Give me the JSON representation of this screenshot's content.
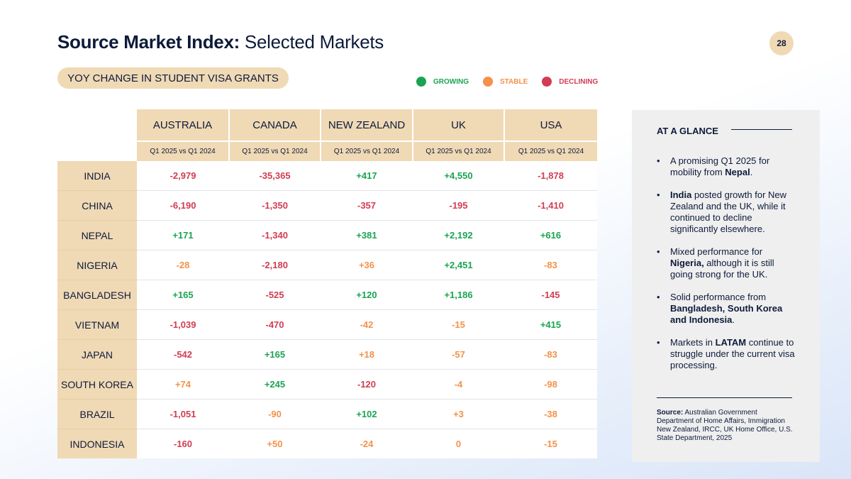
{
  "title": {
    "bold": "Source Market Index:",
    "rest": " Selected Markets"
  },
  "page_number": "28",
  "subtitle_pill": "YOY CHANGE IN STUDENT VISA GRANTS",
  "legend": [
    {
      "label": "GROWING",
      "color": "#1aa452"
    },
    {
      "label": "STABLE",
      "color": "#f5914a"
    },
    {
      "label": "DECLINING",
      "color": "#d23c52"
    }
  ],
  "table": {
    "columns": [
      "AUSTRALIA",
      "CANADA",
      "NEW ZEALAND",
      "UK",
      "USA"
    ],
    "period": "Q1 2025 vs Q1 2024",
    "rows": [
      {
        "label": "INDIA",
        "values": [
          "-2,979",
          "-35,365",
          "+417",
          "+4,550",
          "-1,878"
        ],
        "status": [
          "declining",
          "declining",
          "growing",
          "growing",
          "declining"
        ]
      },
      {
        "label": "CHINA",
        "values": [
          "-6,190",
          "-1,350",
          "-357",
          "-195",
          "-1,410"
        ],
        "status": [
          "declining",
          "declining",
          "declining",
          "declining",
          "declining"
        ]
      },
      {
        "label": "NEPAL",
        "values": [
          "+171",
          "-1,340",
          "+381",
          "+2,192",
          "+616"
        ],
        "status": [
          "growing",
          "declining",
          "growing",
          "growing",
          "growing"
        ]
      },
      {
        "label": "NIGERIA",
        "values": [
          "-28",
          "-2,180",
          "+36",
          "+2,451",
          "-83"
        ],
        "status": [
          "stable",
          "declining",
          "stable",
          "growing",
          "stable"
        ]
      },
      {
        "label": "BANGLADESH",
        "values": [
          "+165",
          "-525",
          "+120",
          "+1,186",
          "-145"
        ],
        "status": [
          "growing",
          "declining",
          "growing",
          "growing",
          "declining"
        ]
      },
      {
        "label": "VIETNAM",
        "values": [
          "-1,039",
          "-470",
          "-42",
          "-15",
          "+415"
        ],
        "status": [
          "declining",
          "declining",
          "stable",
          "stable",
          "growing"
        ]
      },
      {
        "label": "JAPAN",
        "values": [
          "-542",
          "+165",
          "+18",
          "-57",
          "-83"
        ],
        "status": [
          "declining",
          "growing",
          "stable",
          "stable",
          "stable"
        ]
      },
      {
        "label": "SOUTH KOREA",
        "values": [
          "+74",
          "+245",
          "-120",
          "-4",
          "-98"
        ],
        "status": [
          "stable",
          "growing",
          "declining",
          "stable",
          "stable"
        ]
      },
      {
        "label": "BRAZIL",
        "values": [
          "-1,051",
          "-90",
          "+102",
          "+3",
          "-38"
        ],
        "status": [
          "declining",
          "stable",
          "growing",
          "stable",
          "stable"
        ]
      },
      {
        "label": "INDONESIA",
        "values": [
          "-160",
          "+50",
          "-24",
          "0",
          "-15"
        ],
        "status": [
          "declining",
          "stable",
          "stable",
          "stable",
          "stable"
        ]
      }
    ]
  },
  "glance": {
    "heading": "AT A GLANCE",
    "bullets": [
      [
        {
          "t": "A promising Q1 2025 for mobility from "
        },
        {
          "t": "Nepal",
          "b": true
        },
        {
          "t": "."
        }
      ],
      [
        {
          "t": "India",
          "b": true
        },
        {
          "t": " posted growth for New Zealand and the UK, while it continued to decline significantly elsewhere."
        }
      ],
      [
        {
          "t": "Mixed performance for "
        },
        {
          "t": "Nigeria,",
          "b": true
        },
        {
          "t": " although it is still going strong for the UK."
        }
      ],
      [
        {
          "t": "Solid performance from "
        },
        {
          "t": "Bangladesh, South Korea and Indonesia",
          "b": true
        },
        {
          "t": "."
        }
      ],
      [
        {
          "t": "Markets in "
        },
        {
          "t": "LATAM",
          "b": true
        },
        {
          "t": " continue to struggle under the current visa processing."
        }
      ]
    ],
    "source_label": "Source:",
    "source_text": " Australian Government Department of Home Affairs, Immigration New Zealand, IRCC, UK Home Office, U.S. State Department, 2025"
  }
}
